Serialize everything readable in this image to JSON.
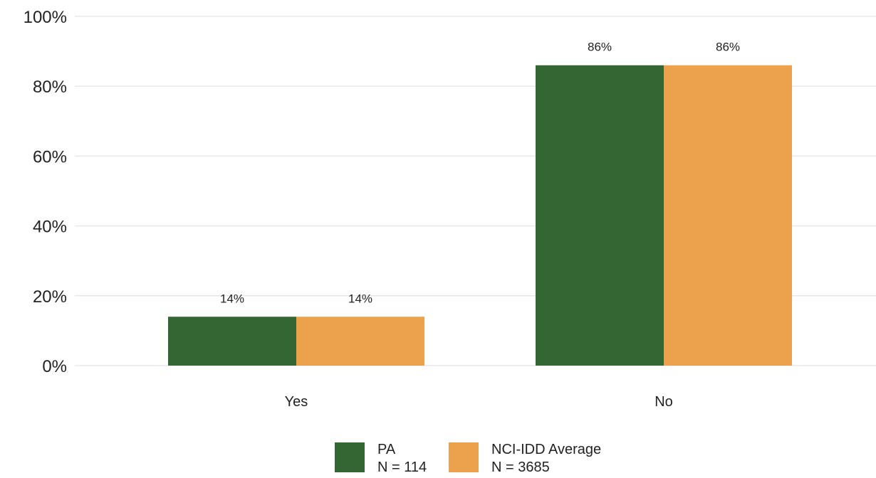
{
  "chart_data": {
    "type": "bar",
    "categories": [
      "Yes",
      "No"
    ],
    "series": [
      {
        "name": "PA",
        "sub": "N = 114",
        "values": [
          14,
          86
        ],
        "labels": [
          "14%",
          "86%"
        ],
        "color": "#336633"
      },
      {
        "name": "NCI-IDD Average",
        "sub": "N = 3685",
        "values": [
          14,
          86
        ],
        "labels": [
          "14%",
          "86%"
        ],
        "color": "#eca14c"
      }
    ],
    "yticks": [
      "0%",
      "20%",
      "40%",
      "60%",
      "80%",
      "100%"
    ],
    "ylim": [
      0,
      100
    ],
    "grid": true,
    "legend": "bottom-center"
  }
}
